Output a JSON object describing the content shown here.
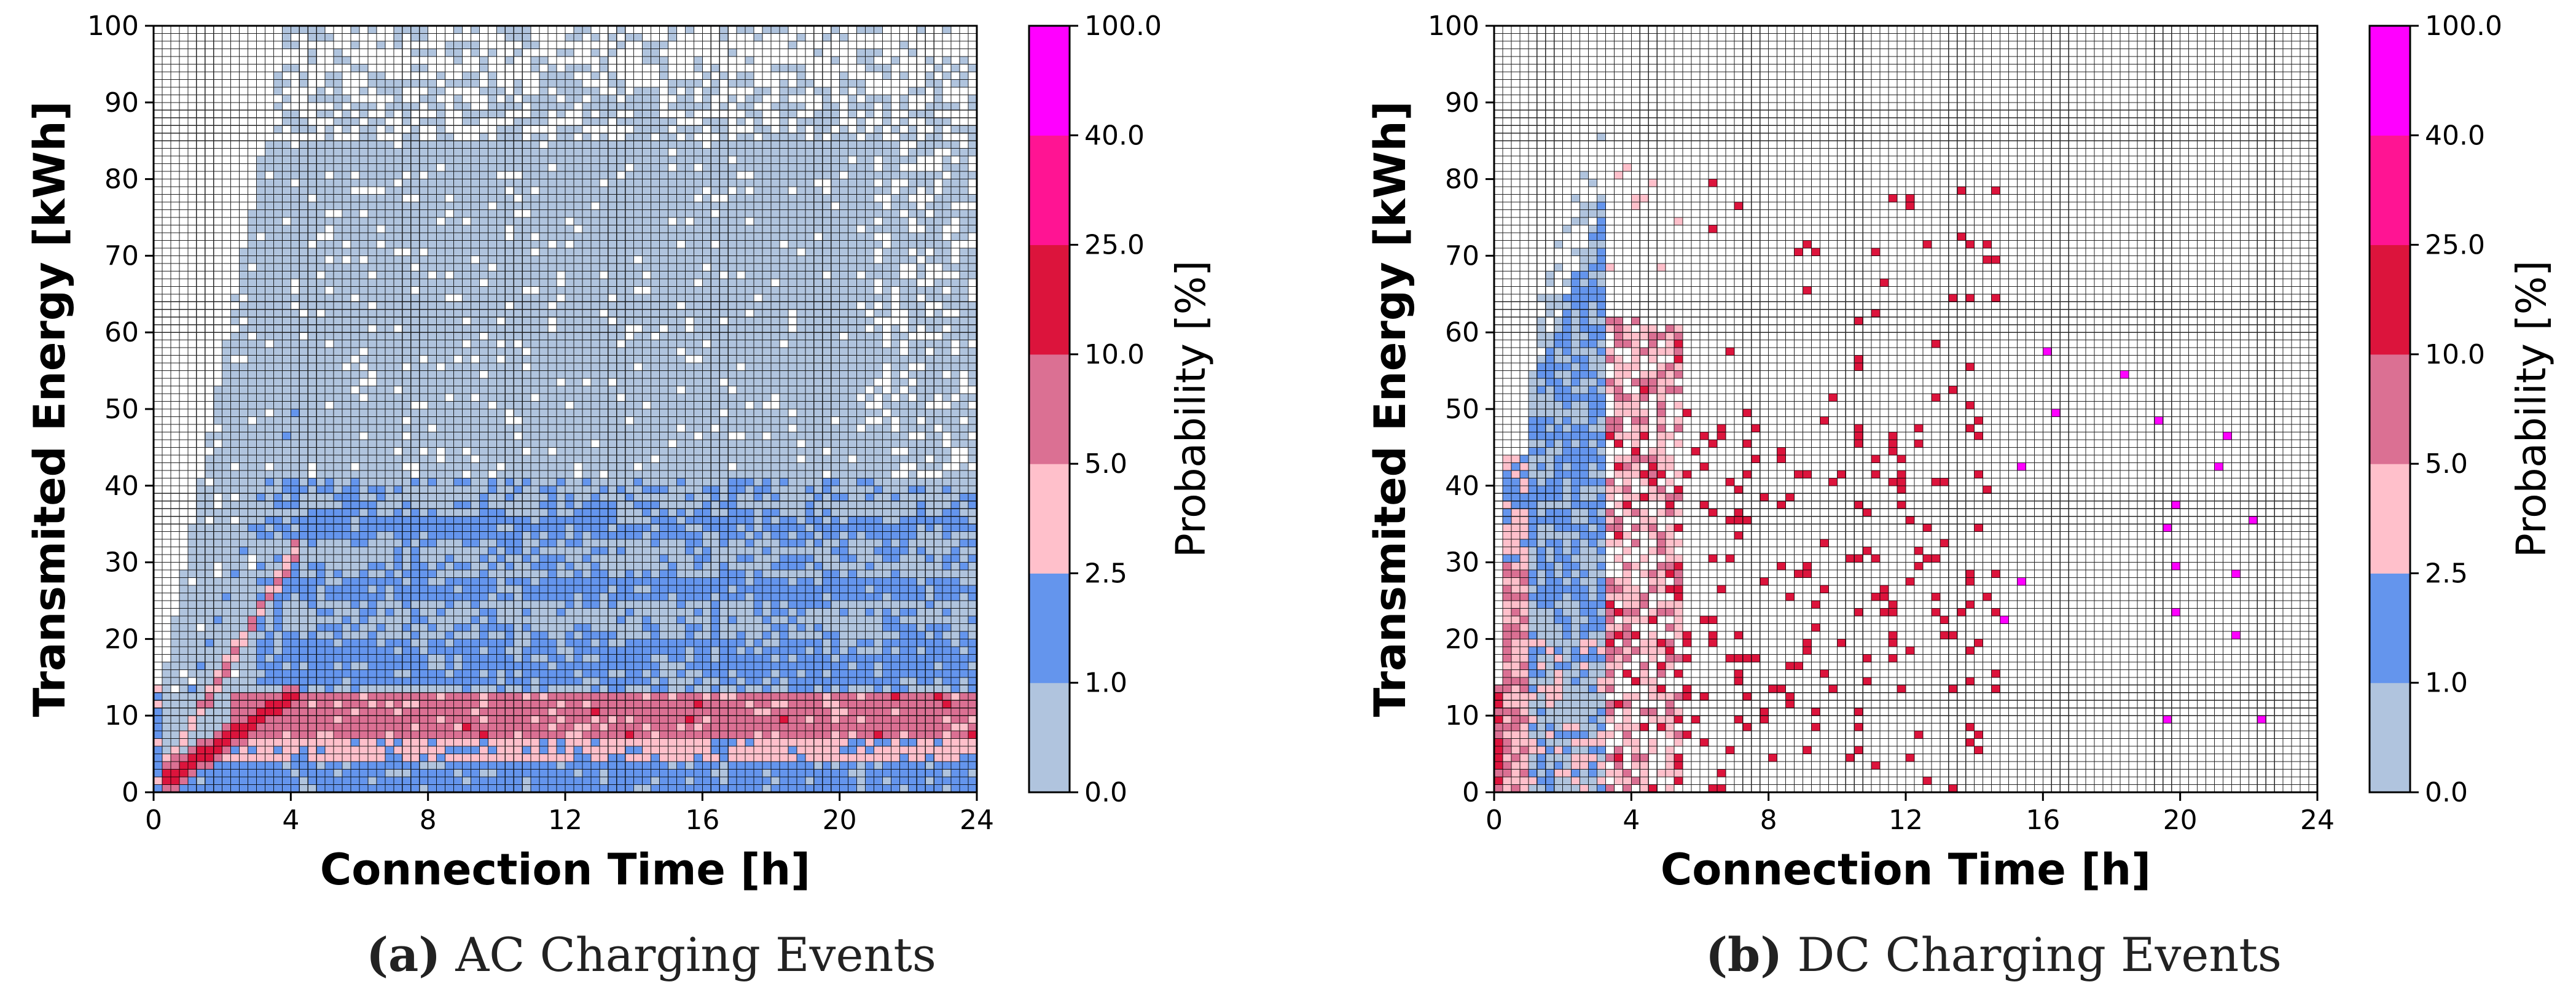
{
  "figure": {
    "caption_a_letter": "(a)",
    "caption_a_text": "AC Charging Events",
    "caption_b_letter": "(b)",
    "caption_b_text": "DC Charging Events"
  },
  "colorbar": {
    "label": "Probability [%]",
    "bounds": [
      0.0,
      1.0,
      2.5,
      5.0,
      10.0,
      25.0,
      40.0,
      100.0
    ],
    "tick_labels": [
      "0.0",
      "1.0",
      "2.5",
      "5.0",
      "10.0",
      "25.0",
      "40.0",
      "100.0"
    ],
    "colors": [
      "#b0c4de",
      "#6495ed",
      "#ffc0cb",
      "#db7093",
      "#dc143c",
      "#ff1493",
      "#ff00ff"
    ]
  },
  "chart_data": [
    {
      "type": "heatmap",
      "panel": "a",
      "title": "AC Charging Events",
      "xlabel": "Connection Time [h]",
      "ylabel": "Transmited Energy [kWh]",
      "xlim": [
        0,
        24
      ],
      "ylim": [
        0,
        100
      ],
      "xticks": [
        0,
        4,
        8,
        12,
        16,
        20,
        24
      ],
      "yticks": [
        0,
        10,
        20,
        30,
        40,
        50,
        60,
        70,
        80,
        90,
        100
      ],
      "grid": true,
      "bin_width_h": 0.25,
      "bin_height_kwh": 1.0,
      "probability_regions": [
        {
          "description": "sparse cloud",
          "x": [
            0.5,
            24
          ],
          "y": [
            14,
            100
          ],
          "probability_pct": "0.0-1.0"
        },
        {
          "description": "mid band",
          "x": [
            3,
            24
          ],
          "y": [
            14,
            41
          ],
          "probability_pct": "1.0-2.5"
        },
        {
          "description": "low band",
          "x": [
            1,
            24
          ],
          "y": [
            0,
            4
          ],
          "probability_pct": "1.0-2.5"
        },
        {
          "description": "light band",
          "x": [
            1.5,
            24
          ],
          "y": [
            4,
            7
          ],
          "probability_pct": "2.5-5.0"
        },
        {
          "description": "main band",
          "x": [
            2,
            24
          ],
          "y": [
            7,
            13
          ],
          "probability_pct": "5.0-10.0"
        },
        {
          "description": "diagonal streak",
          "x": [
            0,
            4
          ],
          "y": [
            0,
            12
          ],
          "probability_pct": "10.0-25.0"
        }
      ]
    },
    {
      "type": "heatmap",
      "panel": "b",
      "title": "DC Charging Events",
      "xlabel": "Connection Time [h]",
      "ylabel": "Transmited Energy [kWh]",
      "xlim": [
        0,
        24
      ],
      "ylim": [
        0,
        100
      ],
      "xticks": [
        0,
        4,
        8,
        12,
        16,
        20,
        24
      ],
      "yticks": [
        0,
        10,
        20,
        30,
        40,
        50,
        60,
        70,
        80,
        90,
        100
      ],
      "grid": true,
      "bin_width_h": 0.25,
      "bin_height_kwh": 1.0,
      "probability_regions": [
        {
          "description": "dense column",
          "x": [
            0.1,
            3.2
          ],
          "y": [
            0,
            80
          ],
          "probability_pct": "0.0-2.5"
        },
        {
          "description": "scatter zone",
          "x": [
            3.2,
            5.5
          ],
          "y": [
            0,
            60
          ],
          "probability_pct": "2.5-10.0"
        },
        {
          "description": "sparse points",
          "x": [
            5.5,
            14.5
          ],
          "y": [
            2,
            82
          ],
          "probability_pct": "10.0-25.0"
        },
        {
          "description": "outlier points",
          "x": [
            14,
            23
          ],
          "y": [
            5,
            60
          ],
          "probability_pct": "40.0-100.0"
        }
      ]
    }
  ]
}
